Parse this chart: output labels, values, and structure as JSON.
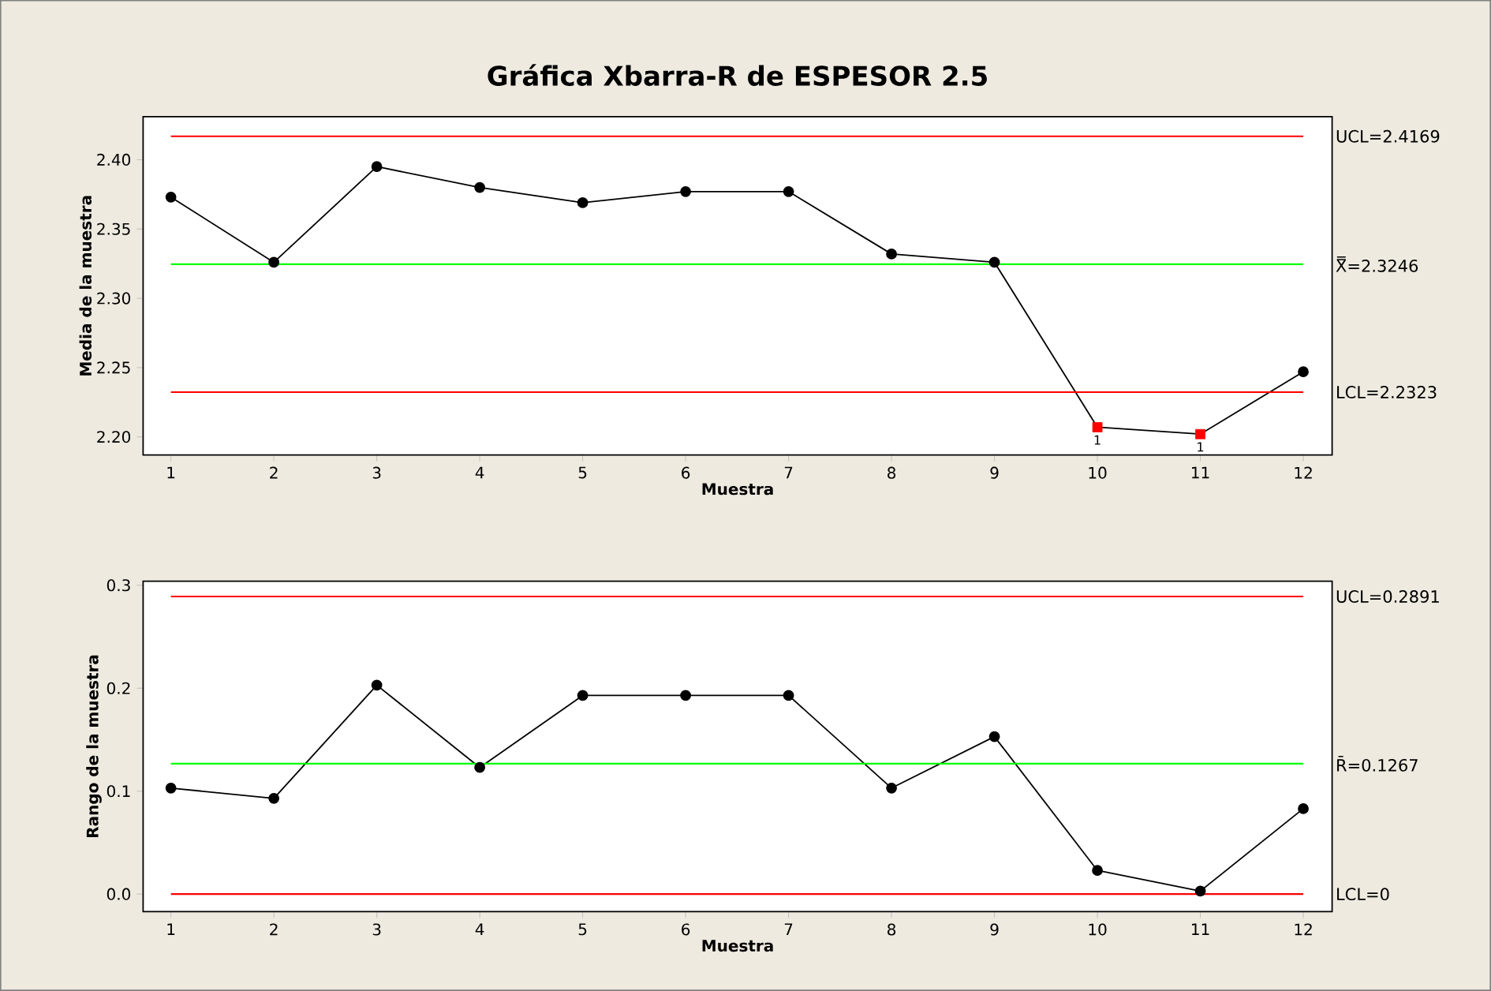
{
  "chart_data": [
    {
      "type": "line",
      "title": "Gráfica Xbarra-R de ESPESOR 2.5",
      "xlabel": "Muestra",
      "ylabel": "Media de la muestra",
      "x": [
        1,
        2,
        3,
        4,
        5,
        6,
        7,
        8,
        9,
        10,
        11,
        12
      ],
      "series": [
        {
          "color": "#000000",
          "values": [
            2.373,
            2.326,
            2.395,
            2.38,
            2.369,
            2.377,
            2.377,
            2.332,
            2.326,
            2.207,
            2.202,
            2.247
          ]
        },
        {
          "type": "scatter",
          "marker": "square",
          "color": "#ff0000",
          "x": [
            10,
            11
          ],
          "values": [
            2.207,
            2.202
          ]
        }
      ],
      "xlim": [
        0.73,
        12.28
      ],
      "xticks": [
        1,
        2,
        3,
        4,
        5,
        6,
        7,
        8,
        9,
        10,
        11,
        12
      ],
      "ylim": [
        2.187,
        2.431
      ],
      "yticks": [
        {
          "value": 2.2,
          "label": "2.20"
        },
        {
          "value": 2.25,
          "label": "2.25"
        },
        {
          "value": 2.3,
          "label": "2.30"
        },
        {
          "value": 2.35,
          "label": "2.35"
        },
        {
          "value": 2.4,
          "label": "2.40"
        }
      ],
      "ref_lines": [
        {
          "axis": "y",
          "value": 2.4169,
          "label": "UCL=2.4169",
          "color": "#ff0000"
        },
        {
          "axis": "y",
          "value": 2.3246,
          "label": "X̿=2.3246",
          "color": "#00ff00"
        },
        {
          "axis": "y",
          "value": 2.2323,
          "label": "LCL=2.2323",
          "color": "#ff0000"
        }
      ],
      "annotations": [
        {
          "text": "1",
          "x": 10,
          "y": 2.207
        },
        {
          "text": "1",
          "x": 11,
          "y": 2.202
        }
      ],
      "marker": "circle",
      "grid": false,
      "legend": false
    },
    {
      "type": "line",
      "xlabel": "Muestra",
      "ylabel": "Rango de la muestra",
      "x": [
        1,
        2,
        3,
        4,
        5,
        6,
        7,
        8,
        9,
        10,
        11,
        12
      ],
      "series": [
        {
          "color": "#000000",
          "values": [
            0.103,
            0.093,
            0.203,
            0.123,
            0.193,
            0.193,
            0.193,
            0.103,
            0.153,
            0.023,
            0.003,
            0.083
          ]
        }
      ],
      "xlim": [
        0.73,
        12.28
      ],
      "xticks": [
        1,
        2,
        3,
        4,
        5,
        6,
        7,
        8,
        9,
        10,
        11,
        12
      ],
      "ylim": [
        -0.017,
        0.304
      ],
      "yticks": [
        {
          "value": 0,
          "label": "0.0"
        },
        {
          "value": 0.1,
          "label": "0.1"
        },
        {
          "value": 0.2,
          "label": "0.2"
        },
        {
          "value": 0.3,
          "label": "0.3"
        }
      ],
      "ref_lines": [
        {
          "axis": "y",
          "value": 0.2891,
          "label": "UCL=0.2891",
          "color": "#ff0000"
        },
        {
          "axis": "y",
          "value": 0.1267,
          "label": "R̄=0.1267",
          "color": "#00ff00"
        },
        {
          "axis": "y",
          "value": 0,
          "label": "LCL=0",
          "color": "#ff0000"
        }
      ],
      "marker": "circle",
      "grid": false,
      "legend": false
    }
  ]
}
